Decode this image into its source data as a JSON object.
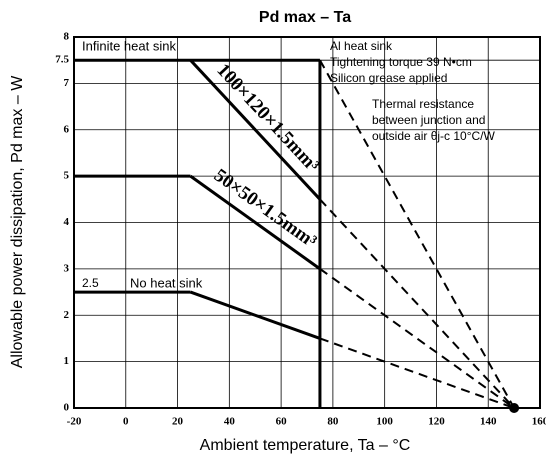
{
  "chart_data": {
    "type": "line",
    "title": "Pd max – Ta",
    "x_label": "Ambient temperature, Ta – °C",
    "y_label": "Allowable power dissipation, Pd max – W",
    "xlim": [
      -20,
      160
    ],
    "ylim": [
      0,
      8
    ],
    "xticks": [
      -20,
      0,
      20,
      40,
      60,
      80,
      100,
      120,
      140,
      160
    ],
    "yticks": [
      0,
      1,
      2,
      3,
      4,
      5,
      6,
      7,
      7.5,
      8
    ],
    "grid": true,
    "color": "#000000",
    "cutoff_x": 75,
    "series": [
      {
        "name": "Infinite heat sink",
        "x": [
          -20,
          75,
          150
        ],
        "values": [
          7.5,
          7.5,
          0
        ],
        "segments": [
          "solid",
          "dashed"
        ]
      },
      {
        "name": "100×120×1.5mm³",
        "x": [
          25,
          75,
          150
        ],
        "values": [
          7.5,
          4.5,
          0
        ],
        "segments": [
          "solid",
          "dashed"
        ]
      },
      {
        "name": "50×50×1.5mm³",
        "x": [
          -20,
          25,
          75,
          150
        ],
        "values": [
          5,
          5,
          3,
          0
        ],
        "segments": [
          "solid",
          "solid",
          "dashed"
        ]
      },
      {
        "name": "No heat sink",
        "x": [
          -20,
          25,
          75,
          150
        ],
        "values": [
          2.5,
          2.5,
          1.5,
          0
        ],
        "segments": [
          "solid",
          "solid",
          "dashed"
        ]
      }
    ],
    "annotations": [
      "2.5",
      "Al heat sink",
      "Tightening torque 39 N•cm",
      "Silicon grease applied",
      "Thermal resistance",
      "between junction and",
      "outside air θj-c 10°C/W"
    ]
  }
}
